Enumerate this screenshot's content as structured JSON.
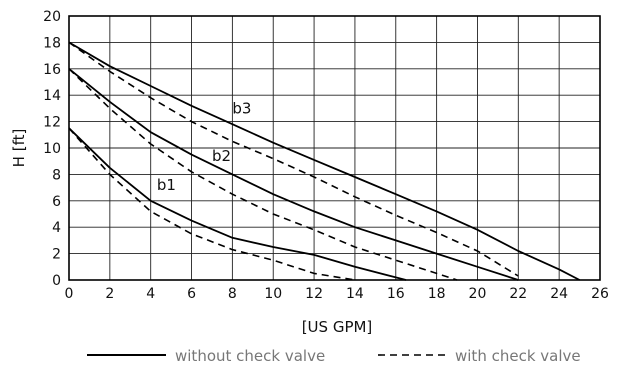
{
  "chart_data": {
    "type": "line",
    "xlabel": "[US GPM]",
    "ylabel": "H [ft]",
    "xlim": [
      0,
      26
    ],
    "ylim": [
      0,
      20
    ],
    "x_ticks": [
      0,
      2,
      4,
      6,
      8,
      10,
      12,
      14,
      16,
      18,
      20,
      22,
      24,
      26
    ],
    "y_ticks": [
      0,
      2,
      4,
      6,
      8,
      10,
      12,
      14,
      16,
      18,
      20
    ],
    "grid": true,
    "legend": {
      "placement": "bottom",
      "entries": [
        {
          "label": "without check valve",
          "style": "solid"
        },
        {
          "label": "with check valve",
          "style": "dashed"
        }
      ]
    },
    "annotations": [
      {
        "text": "b1",
        "x": 4.3,
        "y": 6.8
      },
      {
        "text": "b2",
        "x": 7.0,
        "y": 9.0
      },
      {
        "text": "b3",
        "x": 8.0,
        "y": 12.6
      }
    ],
    "series": [
      {
        "curve": "b1",
        "style": "solid",
        "points": [
          [
            0,
            11.5
          ],
          [
            2,
            8.5
          ],
          [
            4,
            6.0
          ],
          [
            6,
            4.5
          ],
          [
            8,
            3.2
          ],
          [
            10,
            2.5
          ],
          [
            12,
            1.9
          ],
          [
            14,
            1.0
          ],
          [
            16.5,
            0
          ]
        ]
      },
      {
        "curve": "b1",
        "style": "dashed",
        "points": [
          [
            0,
            11.5
          ],
          [
            2,
            8.0
          ],
          [
            4,
            5.2
          ],
          [
            6,
            3.5
          ],
          [
            8,
            2.3
          ],
          [
            10,
            1.5
          ],
          [
            12,
            0.5
          ],
          [
            14,
            0
          ]
        ]
      },
      {
        "curve": "b2",
        "style": "solid",
        "points": [
          [
            0,
            16.0
          ],
          [
            2,
            13.5
          ],
          [
            4,
            11.2
          ],
          [
            6,
            9.5
          ],
          [
            8,
            8.0
          ],
          [
            10,
            6.5
          ],
          [
            12,
            5.2
          ],
          [
            14,
            4.0
          ],
          [
            16,
            3.0
          ],
          [
            18,
            2.0
          ],
          [
            20,
            1.0
          ],
          [
            22,
            0
          ]
        ]
      },
      {
        "curve": "b2",
        "style": "dashed",
        "points": [
          [
            0,
            16.0
          ],
          [
            2,
            13.0
          ],
          [
            4,
            10.3
          ],
          [
            6,
            8.2
          ],
          [
            8,
            6.5
          ],
          [
            10,
            5.0
          ],
          [
            12,
            3.8
          ],
          [
            14,
            2.5
          ],
          [
            16,
            1.5
          ],
          [
            18,
            0.5
          ],
          [
            19,
            0
          ]
        ]
      },
      {
        "curve": "b3",
        "style": "solid",
        "points": [
          [
            0,
            18.0
          ],
          [
            2,
            16.2
          ],
          [
            4,
            14.7
          ],
          [
            6,
            13.2
          ],
          [
            8,
            11.8
          ],
          [
            10,
            10.4
          ],
          [
            12,
            9.1
          ],
          [
            14,
            7.8
          ],
          [
            16,
            6.5
          ],
          [
            18,
            5.2
          ],
          [
            20,
            3.8
          ],
          [
            22,
            2.2
          ],
          [
            24,
            0.8
          ],
          [
            25,
            0
          ]
        ]
      },
      {
        "curve": "b3",
        "style": "dashed",
        "points": [
          [
            0,
            18.0
          ],
          [
            2,
            15.8
          ],
          [
            4,
            13.8
          ],
          [
            6,
            12.0
          ],
          [
            8,
            10.5
          ],
          [
            10,
            9.2
          ],
          [
            12,
            7.8
          ],
          [
            14,
            6.3
          ],
          [
            16,
            4.9
          ],
          [
            18,
            3.6
          ],
          [
            20,
            2.2
          ],
          [
            22,
            0.3
          ]
        ]
      }
    ]
  }
}
